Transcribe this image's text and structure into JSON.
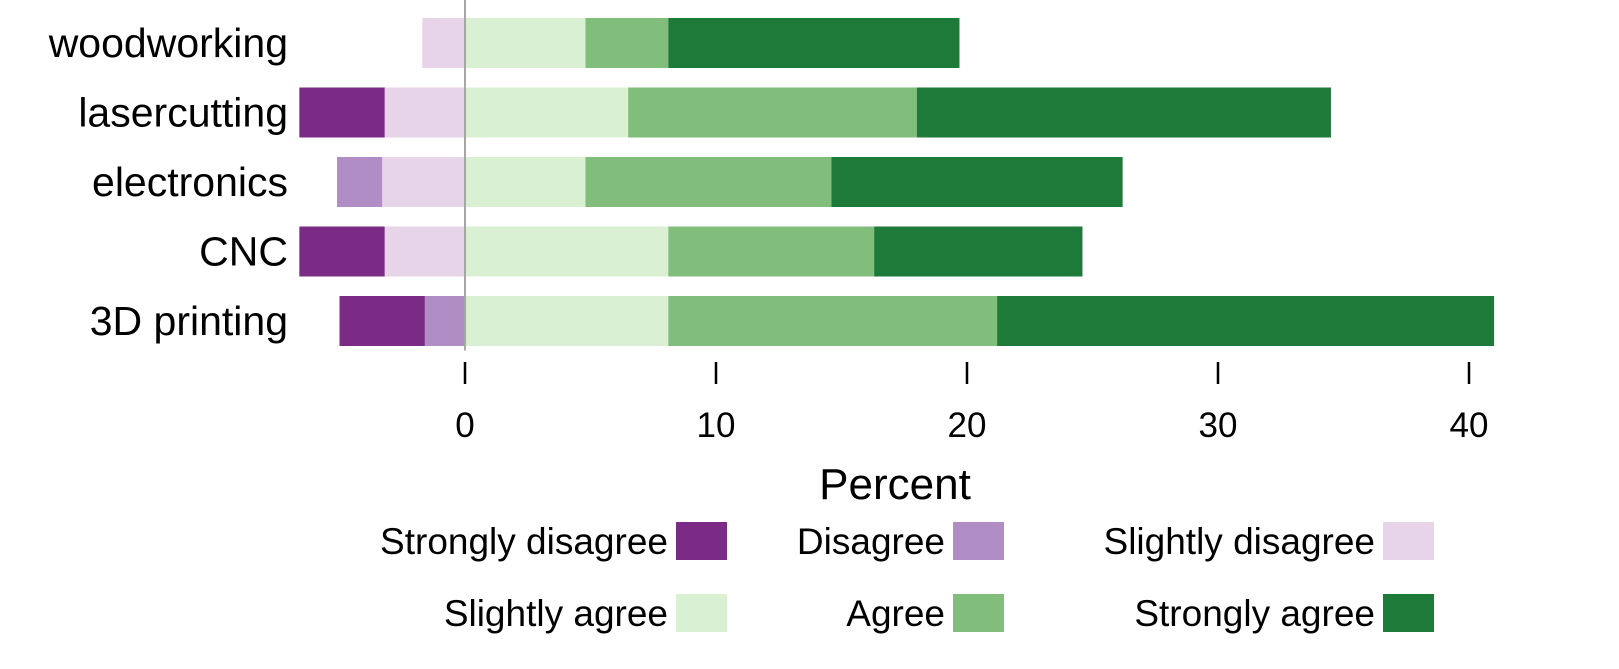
{
  "chart_data": {
    "type": "bar",
    "orientation": "horizontal",
    "stacked": "diverging",
    "categories": [
      "woodworking",
      "lasercutting",
      "electronics",
      "CNC",
      "3D printing"
    ],
    "xlabel": "Percent",
    "ylabel": "",
    "xlim": [
      -6.7,
      41.5
    ],
    "xticks": [
      0,
      10,
      20,
      30,
      40
    ],
    "tick_labels": [
      "0",
      "10",
      "20",
      "30",
      "40"
    ],
    "grid": false,
    "zero_line": true,
    "legend_position": "bottom",
    "series": [
      {
        "name": "Strongly disagree",
        "side": "negative",
        "color": "#7b2a85",
        "values": [
          0,
          3.4,
          0,
          3.4,
          3.4
        ]
      },
      {
        "name": "Disagree",
        "side": "negative",
        "color": "#b08dc4",
        "values": [
          0,
          0,
          1.8,
          0,
          1.6
        ]
      },
      {
        "name": "Slightly disagree",
        "side": "negative",
        "color": "#e8d4e8",
        "values": [
          1.7,
          3.2,
          3.3,
          3.2,
          0
        ]
      },
      {
        "name": "Slightly agree",
        "side": "positive",
        "color": "#d9f0d3",
        "values": [
          4.8,
          6.5,
          4.8,
          8.1,
          8.1
        ]
      },
      {
        "name": "Agree",
        "side": "positive",
        "color": "#81be7c",
        "values": [
          3.3,
          11.5,
          9.8,
          8.2,
          13.1
        ]
      },
      {
        "name": "Strongly agree",
        "side": "positive",
        "color": "#1e7a38",
        "values": [
          11.6,
          16.5,
          11.6,
          8.3,
          19.8
        ]
      }
    ]
  },
  "colors": {
    "zero_line": "#a6a6a6",
    "axis": "#000000"
  }
}
